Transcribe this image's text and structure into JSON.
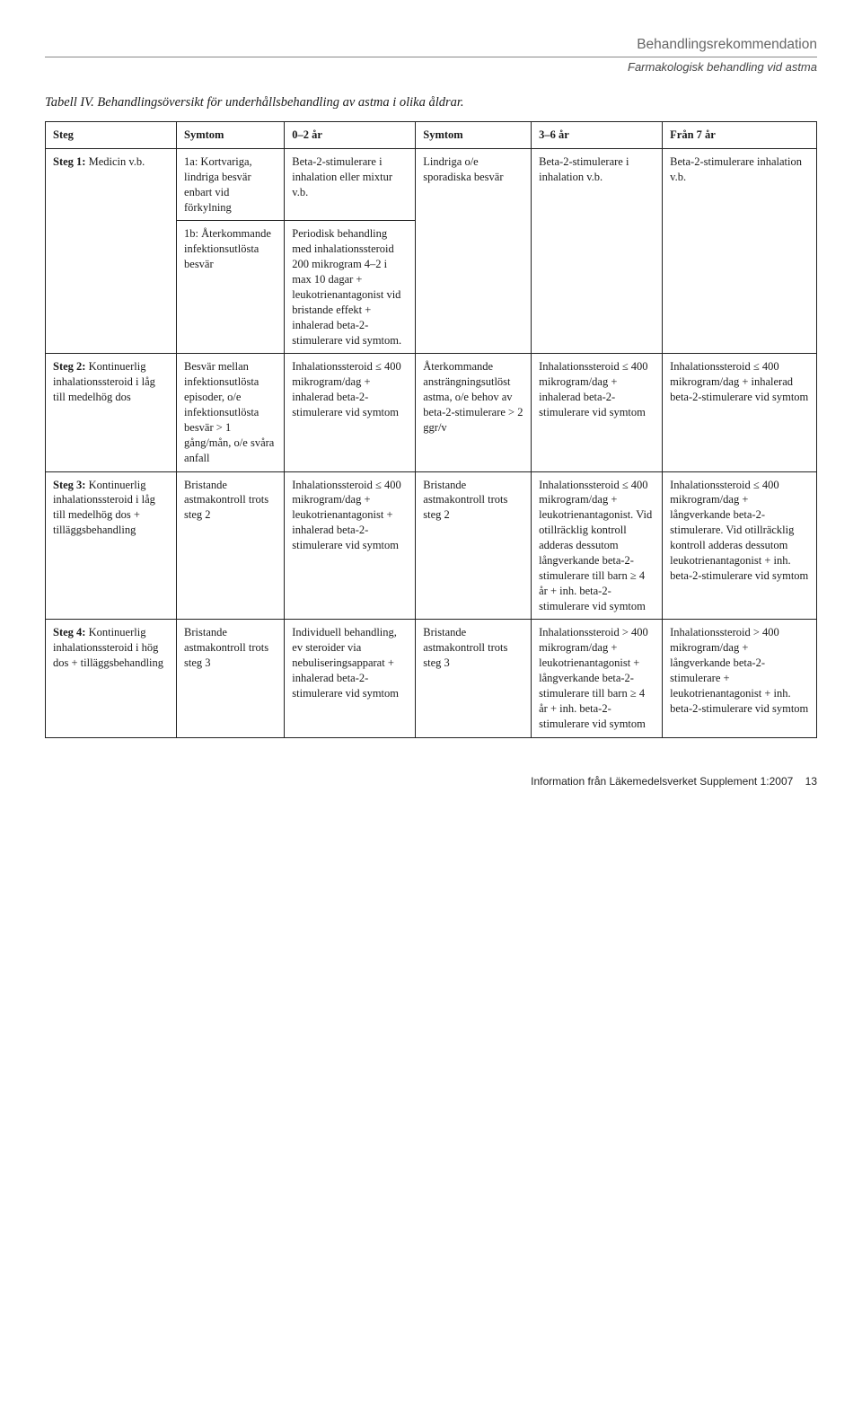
{
  "header": {
    "title": "Behandlingsrekommendation",
    "subtitle": "Farmakologisk behandling vid astma"
  },
  "caption": "Tabell IV. Behandlingsöversikt för underhållsbehandling av astma i olika åldrar.",
  "columns": {
    "c0": "Steg",
    "c1": "Symtom",
    "c2": "0–2 år",
    "c3": "Symtom",
    "c4": "3–6 år",
    "c5": "Från 7 år"
  },
  "rows": {
    "r1a": {
      "steg_label": "Steg 1:",
      "steg_body": "Medicin v.b.",
      "symtom02": "1a: Kortvariga, lindriga besvär enbart vid förkylning",
      "col02": "Beta-2-stimulerare i inhalation eller mixtur v.b.",
      "symtom36": "Lindriga o/e sporadiska besvär",
      "col36": "Beta-2-stimulerare i inhalation v.b.",
      "col7": "Beta-2-stimulerare inhalation v.b."
    },
    "r1b": {
      "symtom02": "1b: Återkommande infektionsutlösta besvär",
      "col02": "Periodisk behandling med inhalationssteroid 200 mikrogram 4–2 i max 10 dagar + leukotrienantagonist vid bristande effekt + inhalerad beta-2-stimulerare vid symtom."
    },
    "r2": {
      "steg_label": "Steg 2:",
      "steg_body": "Kontinuerlig inhalationssteroid i låg till medelhög dos",
      "symtom02": "Besvär mellan infektionsutlösta episoder, o/e infektionsutlösta besvär > 1 gång/mån, o/e svåra anfall",
      "col02": "Inhalationssteroid ≤ 400 mikrogram/dag + inhalerad beta-2-stimulerare vid symtom",
      "symtom36": "Återkommande ansträngningsutlöst astma, o/e behov av beta-2-stimulerare > 2 ggr/v",
      "col36": "Inhalationssteroid ≤ 400 mikrogram/dag + inhalerad beta-2-stimulerare vid symtom",
      "col7": "Inhalationssteroid ≤ 400 mikrogram/dag + inhalerad beta-2-stimulerare vid symtom"
    },
    "r3": {
      "steg_label": "Steg 3:",
      "steg_body": "Kontinuerlig inhalationssteroid i låg till medelhög dos + tilläggsbehandling",
      "symtom02": "Bristande astmakontroll trots steg 2",
      "col02": "Inhalationssteroid ≤ 400 mikrogram/dag + leukotrienantagonist + inhalerad beta-2-stimulerare vid symtom",
      "symtom36": "Bristande astmakontroll trots steg 2",
      "col36": "Inhalationssteroid ≤ 400 mikrogram/dag + leukotrienantagonist. Vid otillräcklig kontroll adderas dessutom långverkande beta-2-stimulerare till barn ≥ 4 år + inh. beta-2-stimulerare vid symtom",
      "col7": "Inhalationssteroid ≤ 400 mikrogram/dag + långverkande beta-2-stimulerare. Vid otillräcklig kontroll adderas dessutom leukotrienantagonist + inh. beta-2-stimulerare vid symtom"
    },
    "r4": {
      "steg_label": "Steg 4:",
      "steg_body": "Kontinuerlig inhalationssteroid i hög dos + tilläggsbehandling",
      "symtom02": "Bristande astmakontroll trots steg 3",
      "col02": "Individuell behandling, ev steroider via nebuliseringsapparat + inhalerad beta-2-stimulerare vid symtom",
      "symtom36": "Bristande astmakontroll trots steg 3",
      "col36": "Inhalationssteroid > 400 mikrogram/dag + leukotrienantagonist + långverkande beta-2-stimulerare till barn ≥ 4 år + inh. beta-2-stimulerare vid symtom",
      "col7": "Inhalationssteroid > 400 mikrogram/dag + långverkande beta-2-stimulerare + leukotrienantagonist + inh. beta-2-stimulerare vid symtom"
    }
  },
  "footer": {
    "text": "Information från Läkemedelsverket Supplement 1:2007",
    "page": "13"
  }
}
